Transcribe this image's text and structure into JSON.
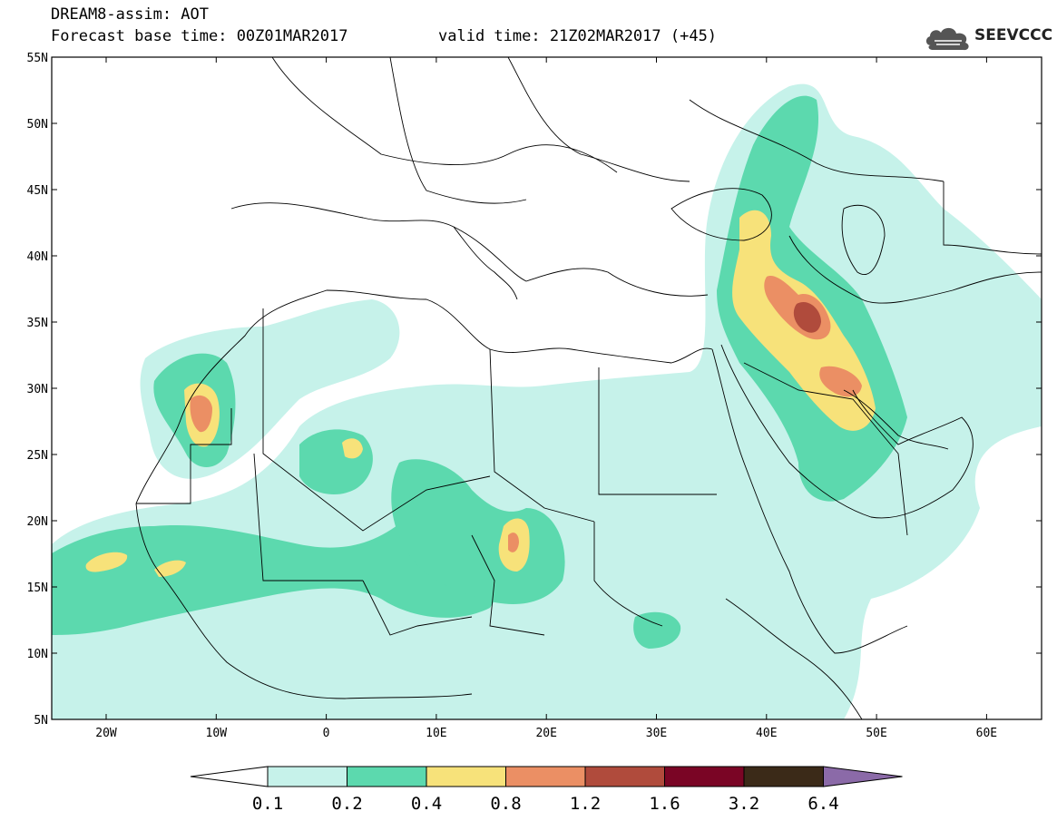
{
  "title": {
    "line1": "DREAM8-assim: AOT",
    "line2": "Forecast base time: 00Z01MAR2017",
    "valid": "valid time: 21Z02MAR2017 (+45)"
  },
  "logo": {
    "text": "SEEVCCC",
    "icon": "cloud-icon"
  },
  "axes": {
    "lon_labels": [
      "20W",
      "10W",
      "0",
      "10E",
      "20E",
      "30E",
      "40E",
      "50E",
      "60E"
    ],
    "lat_labels": [
      "55N",
      "50N",
      "45N",
      "40N",
      "35N",
      "30N",
      "25N",
      "20N",
      "15N",
      "10N",
      "5N"
    ]
  },
  "colorbar": {
    "colors": [
      "#ffffff",
      "#c6f2ea",
      "#5cd9ae",
      "#f7e27a",
      "#eb8f64",
      "#b04b3c",
      "#7a0525",
      "#3b2a18",
      "#8b6aa8"
    ],
    "labels": [
      "0.1",
      "0.2",
      "0.4",
      "0.8",
      "1.2",
      "1.6",
      "3.2",
      "6.4"
    ]
  }
}
